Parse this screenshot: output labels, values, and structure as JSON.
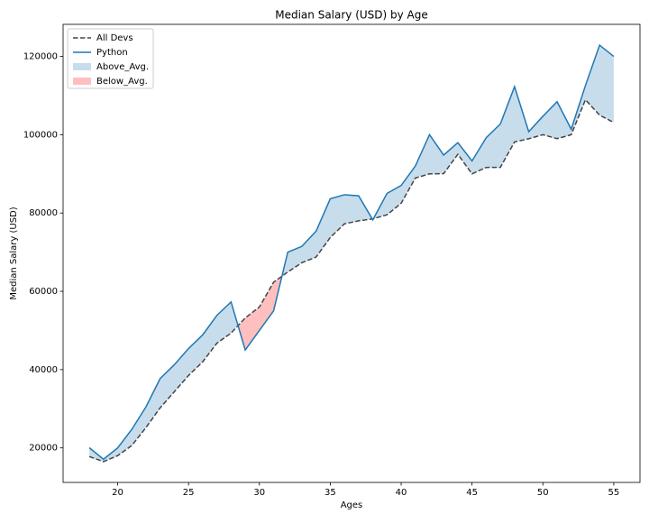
{
  "chart_data": {
    "type": "line",
    "title": "Median Salary (USD) by Age",
    "xlabel": "Ages",
    "ylabel": "Median Salary (USD)",
    "x": [
      18,
      19,
      20,
      21,
      22,
      23,
      24,
      25,
      26,
      27,
      28,
      29,
      30,
      31,
      32,
      33,
      34,
      35,
      36,
      37,
      38,
      39,
      40,
      41,
      42,
      43,
      44,
      45,
      46,
      47,
      48,
      49,
      50,
      51,
      52,
      53,
      54,
      55
    ],
    "series": [
      {
        "name": "All Devs",
        "color": "#444444",
        "linestyle": "--",
        "values": [
          17784,
          16500,
          18012,
          20628,
          25206,
          30252,
          34368,
          38496,
          42000,
          46752,
          49320,
          53200,
          56000,
          62316,
          64928,
          67317,
          68748,
          73752,
          77232,
          78000,
          78508,
          79536,
          82488,
          88935,
          90000,
          90056,
          95000,
          90000,
          91633,
          91660,
          98150,
          98964,
          100000,
          98988,
          100000,
          108923,
          105000,
          103117
        ]
      },
      {
        "name": "Python",
        "color": "#1f77b4",
        "linestyle": "-",
        "values": [
          20046,
          17100,
          20000,
          24744,
          30500,
          37732,
          41247,
          45372,
          48876,
          53850,
          57287,
          45000,
          50000,
          55000,
          70000,
          71496,
          75370,
          83640,
          84666,
          84392,
          78254,
          85000,
          87038,
          91991,
          100000,
          94796,
          97962,
          93302,
          99240,
          102736,
          112285,
          100771,
          104708,
          108423,
          101407,
          112542,
          122870,
          120000
        ]
      }
    ],
    "fills": [
      {
        "name": "Above_Avg.",
        "color": "#1f77b4",
        "alpha": 0.25
      },
      {
        "name": "Below_Avg.",
        "color": "#ff0000",
        "alpha": 0.25
      }
    ],
    "xlim": [
      16.15,
      56.85
    ],
    "xticks": [
      20,
      25,
      30,
      35,
      40,
      45,
      50,
      55
    ],
    "ylim": [
      11181.5,
      128188.5
    ],
    "yticks": [
      20000,
      40000,
      60000,
      80000,
      100000,
      120000
    ],
    "legend": "upper left"
  }
}
